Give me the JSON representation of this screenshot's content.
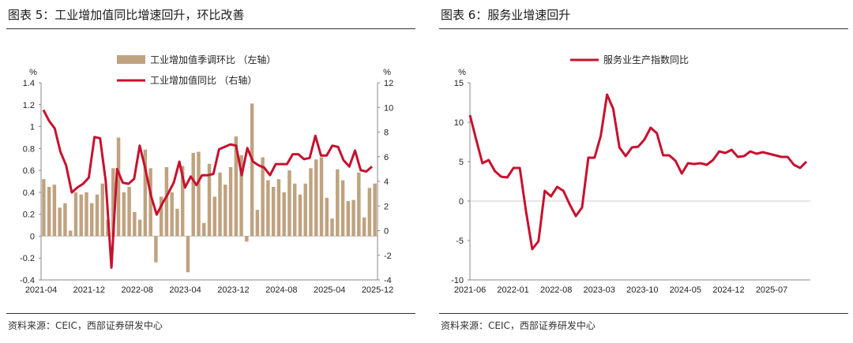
{
  "left": {
    "title": "图表 5：工业增加值同比增速回升，环比改善",
    "source": "资料来源：CEIC，西部证券研发中心"
  },
  "right": {
    "title": "图表 6：服务业增速回升",
    "source": "资料来源：CEIC，西部证券研发中心"
  },
  "colors": {
    "bar": "#BFA27F",
    "line": "#C8102E",
    "axis": "#888888",
    "text": "#222222"
  },
  "chart_data": [
    {
      "type": "bar+line",
      "left_unit": "%",
      "right_unit": "%",
      "x_tick_labels": [
        "2021-04",
        "2021-12",
        "2022-08",
        "2023-04",
        "2023-12",
        "2024-08",
        "2025-04",
        "2025-12"
      ],
      "ylim_left": [
        -0.4,
        1.4
      ],
      "yticks_left": [
        "1.4",
        "1.2",
        "1",
        "0.8",
        "0.6",
        "0.4",
        "0.2",
        "0",
        "-0.2",
        "-0.4"
      ],
      "ylim_right": [
        -4,
        12
      ],
      "yticks_right": [
        "12",
        "10",
        "8",
        "6",
        "4",
        "2",
        "0",
        "-2",
        "-4"
      ],
      "series": [
        {
          "name": "工业增加值季调环比 （左轴）",
          "type": "bar",
          "axis": "left",
          "values": [
            0.52,
            0.45,
            0.47,
            0.26,
            0.3,
            0.05,
            0.4,
            0.38,
            0.4,
            0.3,
            0.38,
            0.48,
            0.15,
            0.62,
            0.9,
            0.4,
            0.45,
            0.22,
            0.15,
            0.79,
            0.62,
            -0.24,
            0.36,
            0.63,
            0.4,
            0.25,
            0.64,
            -0.33,
            0.76,
            0.77,
            0.12,
            0.66,
            0.36,
            0.58,
            0.47,
            0.63,
            0.91,
            0.74,
            -0.05,
            1.21,
            0.24,
            0.72,
            0.51,
            0.45,
            0.52,
            0.4,
            0.6,
            0.48,
            0.38,
            0.48,
            0.62,
            0.7,
            0.72,
            0.35,
            0.16,
            0.61,
            0.51,
            0.32,
            0.33,
            0.58,
            0.17,
            0.44,
            0.48
          ]
        },
        {
          "name": "工业增加值同比 （右轴）",
          "type": "line",
          "axis": "right",
          "values": [
            9.8,
            8.9,
            8.3,
            6.4,
            5.3,
            3.1,
            3.5,
            3.8,
            4.3,
            7.6,
            7.5,
            4.0,
            -3.0,
            5.0,
            3.9,
            3.8,
            4.2,
            6.9,
            5.0,
            2.8,
            1.3,
            2.2,
            3.0,
            3.9,
            5.6,
            3.5,
            4.4,
            3.7,
            4.5,
            4.5,
            4.6,
            6.6,
            6.8,
            7.0,
            6.9,
            4.5,
            6.7,
            5.6,
            5.3,
            5.1,
            4.5,
            5.4,
            5.4,
            5.4,
            6.2,
            6.2,
            5.8,
            5.9,
            7.7,
            6.1,
            6.1,
            6.9,
            6.8,
            5.7,
            5.2,
            6.5,
            4.9,
            4.8,
            5.2
          ]
        }
      ]
    },
    {
      "type": "line",
      "unit": "%",
      "x_tick_labels": [
        "2021-06",
        "2022-01",
        "2022-08",
        "2023-03",
        "2023-10",
        "2024-05",
        "2024-12",
        "2025-07"
      ],
      "ylim": [
        -10,
        15
      ],
      "yticks": [
        "15",
        "10",
        "5",
        "0",
        "-5",
        "-10"
      ],
      "series": [
        {
          "name": "服务业生产指数同比",
          "values": [
            10.9,
            7.8,
            4.8,
            5.2,
            3.8,
            3.1,
            3.0,
            4.2,
            4.2,
            -1.3,
            -6.1,
            -5.1,
            1.3,
            0.6,
            1.8,
            1.3,
            -0.4,
            -1.9,
            -0.8,
            5.5,
            5.5,
            8.3,
            13.5,
            11.7,
            6.8,
            5.7,
            6.8,
            6.9,
            7.8,
            9.3,
            8.6,
            5.8,
            5.8,
            5.1,
            3.5,
            4.8,
            4.7,
            4.8,
            4.6,
            5.2,
            6.3,
            6.1,
            6.5,
            5.6,
            5.7,
            6.3,
            6.0,
            6.2,
            6.0,
            5.8,
            5.6,
            5.6,
            4.6,
            4.2,
            5.0
          ]
        }
      ]
    }
  ]
}
